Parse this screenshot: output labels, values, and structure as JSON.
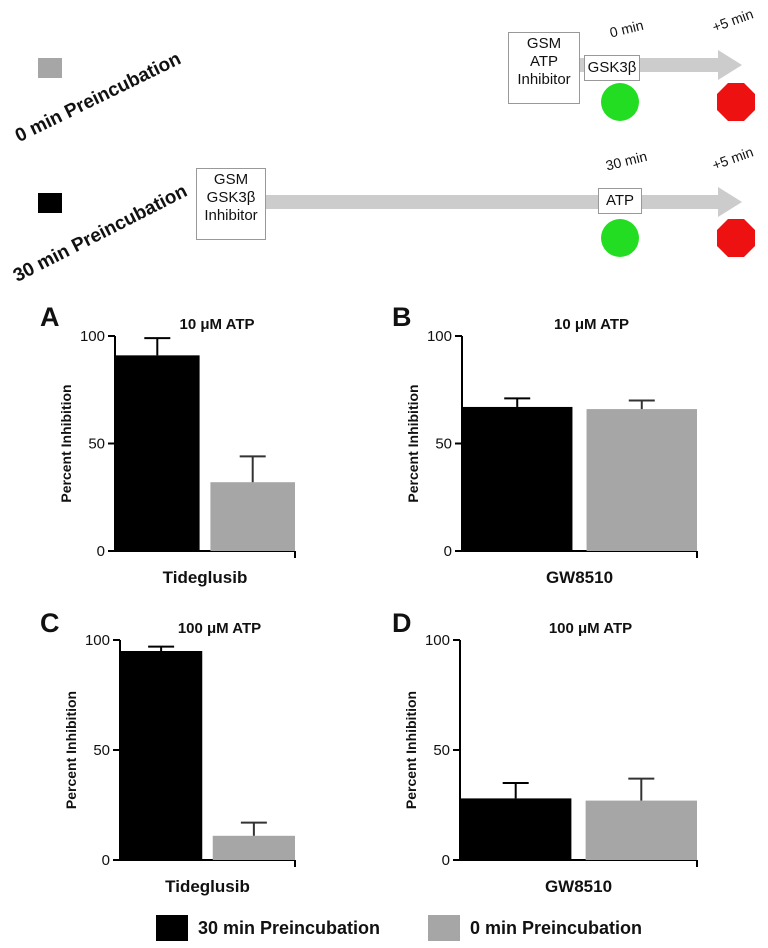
{
  "colors": {
    "black_series": "#000000",
    "gray_series": "#a6a6a6",
    "start": "#22dd22",
    "stop": "#ee1111",
    "arrow": "#cccccc"
  },
  "schematic": {
    "row1": {
      "label": "0 min Preincubation",
      "box_lines": [
        "GSM",
        "ATP",
        "Inhibitor"
      ],
      "enzyme_box": "GSK3β",
      "time_start": "0 min",
      "time_end": "+5 min"
    },
    "row2": {
      "label": "30 min Preincubation",
      "box_lines": [
        "GSM",
        "GSK3β",
        "Inhibitor"
      ],
      "atp_box": "ATP",
      "time_start": "30 min",
      "time_end": "+5 min"
    }
  },
  "legend": {
    "series1": "30 min Preincubation",
    "series2": "0 min Preincubation"
  },
  "chart_data": [
    {
      "panel": "A",
      "type": "bar",
      "title": "10 μM ATP",
      "xlabel": "Tideglusib",
      "ylabel": "Percent Inhibition",
      "ylim": [
        0,
        100
      ],
      "yticks": [
        "0",
        "50",
        "100"
      ],
      "series": [
        {
          "name": "30 min Preincubation",
          "value": 91,
          "error": 8
        },
        {
          "name": "0 min Preincubation",
          "value": 32,
          "error": 12
        }
      ]
    },
    {
      "panel": "B",
      "type": "bar",
      "title": "10 μM ATP",
      "xlabel": "GW8510",
      "ylabel": "Percent Inhibition",
      "ylim": [
        0,
        100
      ],
      "yticks": [
        "0",
        "50",
        "100"
      ],
      "series": [
        {
          "name": "30 min Preincubation",
          "value": 67,
          "error": 4
        },
        {
          "name": "0 min Preincubation",
          "value": 66,
          "error": 4
        }
      ]
    },
    {
      "panel": "C",
      "type": "bar",
      "title": "100 μM ATP",
      "xlabel": "Tideglusib",
      "ylabel": "Percent Inhibition",
      "ylim": [
        0,
        100
      ],
      "yticks": [
        "0",
        "50",
        "100"
      ],
      "series": [
        {
          "name": "30 min Preincubation",
          "value": 95,
          "error": 2
        },
        {
          "name": "0 min Preincubation",
          "value": 11,
          "error": 6
        }
      ]
    },
    {
      "panel": "D",
      "type": "bar",
      "title": "100 μM ATP",
      "xlabel": "GW8510",
      "ylabel": "Percent Inhibition",
      "ylim": [
        0,
        100
      ],
      "yticks": [
        "0",
        "50",
        "100"
      ],
      "series": [
        {
          "name": "30 min Preincubation",
          "value": 28,
          "error": 7
        },
        {
          "name": "0 min Preincubation",
          "value": 27,
          "error": 10
        }
      ]
    }
  ]
}
